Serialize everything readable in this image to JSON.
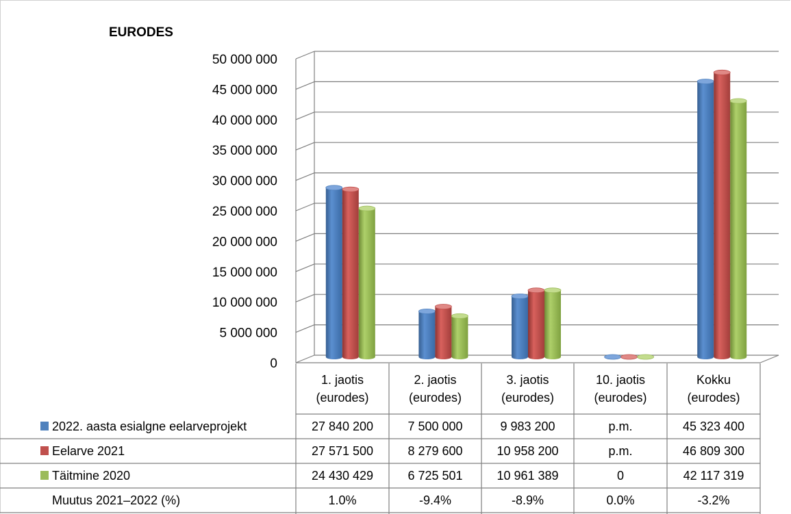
{
  "chart_data": {
    "type": "bar",
    "ylabel": "EURODES",
    "ylim": [
      0,
      50000000
    ],
    "y_tick_labels": [
      "0",
      "5 000 000",
      "10 000 000",
      "15 000 000",
      "20 000 000",
      "25 000 000",
      "30 000 000",
      "35 000 000",
      "40 000 000",
      "45 000 000",
      "50 000 000"
    ],
    "grid": true,
    "categories": [
      [
        "1. jaotis",
        "(eurodes)"
      ],
      [
        "2. jaotis",
        "(eurodes)"
      ],
      [
        "3. jaotis",
        "(eurodes)"
      ],
      [
        "10. jaotis",
        "(eurodes)"
      ],
      [
        "Kokku",
        "(eurodes)"
      ]
    ],
    "series": [
      {
        "name": "2022. aasta esialgne eelarveprojekt",
        "color": "#4F81BD",
        "values": [
          27840200,
          7500000,
          9983200,
          0,
          45323400
        ],
        "table": [
          "27 840 200",
          "7 500 000",
          "9 983 200",
          "p.m.",
          "45 323 400"
        ]
      },
      {
        "name": "Eelarve 2021",
        "color": "#C0504D",
        "values": [
          27571500,
          8279600,
          10958200,
          0,
          46809300
        ],
        "table": [
          "27 571 500",
          "8 279 600",
          "10 958 200",
          "p.m.",
          "46 809 300"
        ]
      },
      {
        "name": "Täitmine 2020",
        "color": "#9BBB59",
        "values": [
          24430429,
          6725501,
          10961389,
          0,
          42117319
        ],
        "table": [
          "24 430 429",
          "6 725 501",
          "10 961 389",
          "0",
          "42 117 319"
        ]
      }
    ],
    "extra_row": {
      "name": "Muutus 2021–2022 (%)",
      "table": [
        "1.0%",
        "-9.4%",
        "-8.9%",
        "0.0%",
        "-3.2%"
      ]
    }
  }
}
